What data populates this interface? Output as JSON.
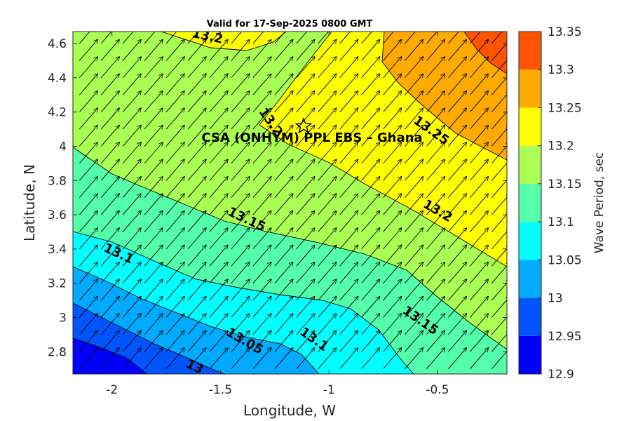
{
  "chart_data": {
    "type": "filled-contour",
    "title": "Valid for 17-Sep-2025 0800 GMT",
    "xlabel": "Longitude, W",
    "ylabel": "Latitude, N",
    "xlim": [
      -2.18,
      -0.18
    ],
    "ylim": [
      2.67,
      4.67
    ],
    "xticks": [
      "-2",
      "-1.5",
      "-1",
      "-0.5"
    ],
    "yticks": [
      "2.8",
      "3",
      "3.2",
      "3.4",
      "3.6",
      "3.8",
      "4",
      "4.2",
      "4.4",
      "4.6"
    ],
    "colorbar": {
      "label": "Wave Period, sec",
      "levels": [
        12.9,
        12.95,
        13,
        13.05,
        13.1,
        13.15,
        13.2,
        13.25,
        13.3,
        13.35
      ],
      "tick_labels": [
        "12.9",
        "12.95",
        "13",
        "13.05",
        "13.1",
        "13.15",
        "13.2",
        "13.25",
        "13.3",
        "13.35"
      ],
      "colors": [
        "#0000ff",
        "#0055ff",
        "#00aaff",
        "#00ffff",
        "#55ffaa",
        "#aaff55",
        "#ffff00",
        "#ffaa00",
        "#ff5500"
      ]
    },
    "contour_labels": [
      {
        "text": "13.2",
        "lon": -1.56,
        "lat": 4.64
      },
      {
        "text": "13.25",
        "lon": -0.53,
        "lat": 4.09
      },
      {
        "text": "13.2",
        "lon": -0.5,
        "lat": 3.62
      },
      {
        "text": "13.15",
        "lon": -1.38,
        "lat": 3.57
      },
      {
        "text": "13.1",
        "lon": -1.97,
        "lat": 3.37
      },
      {
        "text": "13.15",
        "lon": -0.58,
        "lat": 2.98
      },
      {
        "text": "13.1",
        "lon": -1.07,
        "lat": 2.87
      },
      {
        "text": "13.05",
        "lon": -1.39,
        "lat": 2.86
      },
      {
        "text": "13",
        "lon": -1.62,
        "lat": 2.71
      },
      {
        "text": "13.2",
        "lon": -1.27,
        "lat": 4.14
      }
    ],
    "site": {
      "name": "CSA (ONHYM) PPL EBS  – Ghana",
      "lon": -1.09,
      "lat": 4.11
    },
    "vectors": {
      "direction": "north-east",
      "grid_spacing_deg": 0.1
    }
  }
}
